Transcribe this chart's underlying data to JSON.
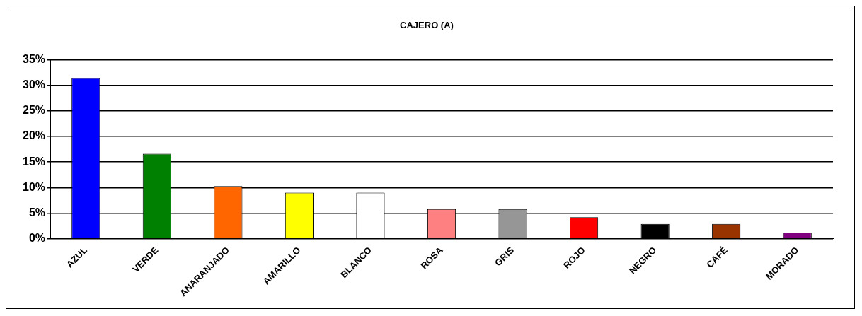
{
  "chart_data": {
    "type": "bar",
    "title": "CAJERO (A)",
    "categories": [
      "AZUL",
      "VERDE",
      "ANARANJADO",
      "AMARILLO",
      "BLANCO",
      "ROSA",
      "GRIS",
      "ROJO",
      "NEGRO",
      "CAFÉ",
      "MORADO"
    ],
    "values": [
      31.4,
      16.6,
      10.3,
      9.0,
      9.0,
      5.8,
      5.8,
      4.2,
      2.9,
      2.9,
      1.2
    ],
    "colors": [
      "#0000ff",
      "#008000",
      "#ff6600",
      "#ffff00",
      "#ffffff",
      "#ff8080",
      "#969696",
      "#ff0000",
      "#000000",
      "#993300",
      "#800080"
    ],
    "ylim": [
      0,
      35
    ],
    "yticks": [
      {
        "value": 0,
        "label": "0%"
      },
      {
        "value": 5,
        "label": "5%"
      },
      {
        "value": 10,
        "label": "10%"
      },
      {
        "value": 15,
        "label": "15%"
      },
      {
        "value": 20,
        "label": "20%"
      },
      {
        "value": 25,
        "label": "25%"
      },
      {
        "value": 30,
        "label": "30%"
      },
      {
        "value": 35,
        "label": "35%"
      }
    ],
    "grid": "y",
    "legend": false
  }
}
